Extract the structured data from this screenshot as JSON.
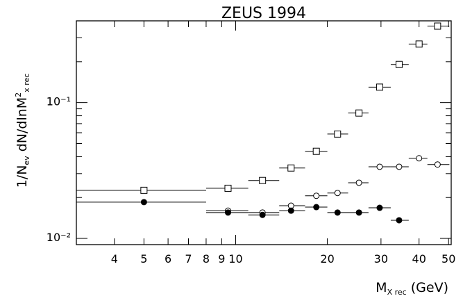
{
  "chart_data": {
    "type": "scatter",
    "title": "ZEUS 1994",
    "xlabel": [
      {
        "text": "M"
      },
      {
        "text": "X rec",
        "sub": true
      },
      {
        "text": " (GeV)"
      }
    ],
    "ylabel": [
      {
        "text": "1/N"
      },
      {
        "text": "ev",
        "sub": true
      },
      {
        "text": " dN/dlnM"
      },
      {
        "text": "2",
        "sup": true
      },
      {
        "text": "x rec",
        "sub": true
      }
    ],
    "xscale": "log",
    "yscale": "log",
    "xlim": [
      3,
      51
    ],
    "ylim": [
      0.009,
      0.4
    ],
    "xticks": [
      4,
      5,
      6,
      7,
      8,
      9,
      10,
      20,
      30,
      40,
      50
    ],
    "yticks": [
      {
        "value": 0.01,
        "label": "10⁻²"
      },
      {
        "value": 0.1,
        "label": "10⁻¹"
      }
    ],
    "yminor_ticks": [
      0.02,
      0.03,
      0.04,
      0.05,
      0.06,
      0.07,
      0.08,
      0.09,
      0.2,
      0.3,
      0.4
    ],
    "series": [
      {
        "marker": "square-open",
        "color": "#000000",
        "x": [
          5,
          9.44,
          12.25,
          15.2,
          18.4,
          21.6,
          25.4,
          29.7,
          34.4,
          40,
          46
        ],
        "x_low": [
          3,
          8,
          11,
          13.9,
          16.9,
          20,
          23.4,
          27.3,
          32.3,
          37,
          42.6
        ],
        "x_high": [
          8,
          11,
          13.9,
          16.9,
          20,
          23.4,
          27.3,
          32.3,
          37,
          42.6,
          50.3
        ],
        "values": [
          0.0226,
          0.0234,
          0.0267,
          0.033,
          0.0438,
          0.0587,
          0.0838,
          0.13,
          0.191,
          0.27,
          0.366
        ]
      },
      {
        "marker": "circle-open",
        "color": "#000000",
        "x": [
          9.44,
          12.25,
          15.2,
          18.4,
          21.6,
          25.4,
          29.7,
          34.4,
          40,
          46
        ],
        "x_low": [
          8,
          11,
          13.9,
          16.9,
          20,
          23.4,
          27.3,
          32.3,
          37,
          42.6
        ],
        "x_high": [
          11,
          13.9,
          16.9,
          20,
          23.4,
          27.3,
          32.3,
          37,
          42.6,
          50.3
        ],
        "values": [
          0.016,
          0.0155,
          0.0174,
          0.0206,
          0.0216,
          0.0257,
          0.0337,
          0.0337,
          0.0389,
          0.035
        ]
      },
      {
        "marker": "circle-filled",
        "color": "#000000",
        "x": [
          5,
          9.44,
          12.25,
          15.2,
          18.4,
          21.6,
          25.4,
          29.7,
          34.4
        ],
        "x_low": [
          3,
          8,
          11,
          13.9,
          16.9,
          20,
          23.4,
          27.3,
          32.3
        ],
        "x_high": [
          8,
          11,
          13.9,
          16.9,
          20,
          23.4,
          27.3,
          32.3,
          37
        ],
        "values": [
          0.0185,
          0.0155,
          0.0149,
          0.016,
          0.017,
          0.0155,
          0.0155,
          0.0168,
          0.0136
        ]
      }
    ]
  }
}
